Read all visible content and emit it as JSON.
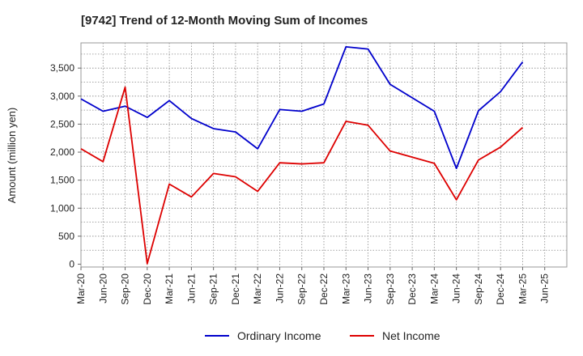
{
  "chart_data": {
    "type": "line",
    "title": "[9742]  Trend of 12-Month Moving Sum of Incomes",
    "xlabel": "",
    "ylabel": "Amount (million yen)",
    "ylim": [
      -50,
      3950
    ],
    "yticks": [
      0,
      500,
      1000,
      1500,
      2000,
      2500,
      3000,
      3500
    ],
    "ytick_labels": [
      "0",
      "500",
      "1,000",
      "1,500",
      "2,000",
      "2,500",
      "3,000",
      "3,500"
    ],
    "categories": [
      "Mar-20",
      "Jun-20",
      "Sep-20",
      "Dec-20",
      "Mar-21",
      "Jun-21",
      "Sep-21",
      "Dec-21",
      "Mar-22",
      "Jun-22",
      "Sep-22",
      "Dec-22",
      "Mar-23",
      "Jun-23",
      "Sep-23",
      "Dec-23",
      "Mar-24",
      "Jun-24",
      "Sep-24",
      "Dec-24",
      "Mar-25",
      "Jun-25"
    ],
    "grid": true,
    "legend_position": "bottom-center",
    "series": [
      {
        "name": "Ordinary Income",
        "color": "#0000cc",
        "values": [
          2950,
          2730,
          2820,
          2620,
          2920,
          2600,
          2420,
          2360,
          2060,
          2760,
          2730,
          2860,
          3880,
          3840,
          3210,
          2970,
          2730,
          1710,
          2740,
          3080,
          3610,
          null
        ]
      },
      {
        "name": "Net Income",
        "color": "#dd0000",
        "values": [
          2060,
          1830,
          3160,
          10,
          1430,
          1200,
          1620,
          1560,
          1300,
          1810,
          1790,
          1810,
          2550,
          2480,
          2020,
          1910,
          1800,
          1150,
          1860,
          2090,
          2440,
          null
        ]
      }
    ]
  }
}
